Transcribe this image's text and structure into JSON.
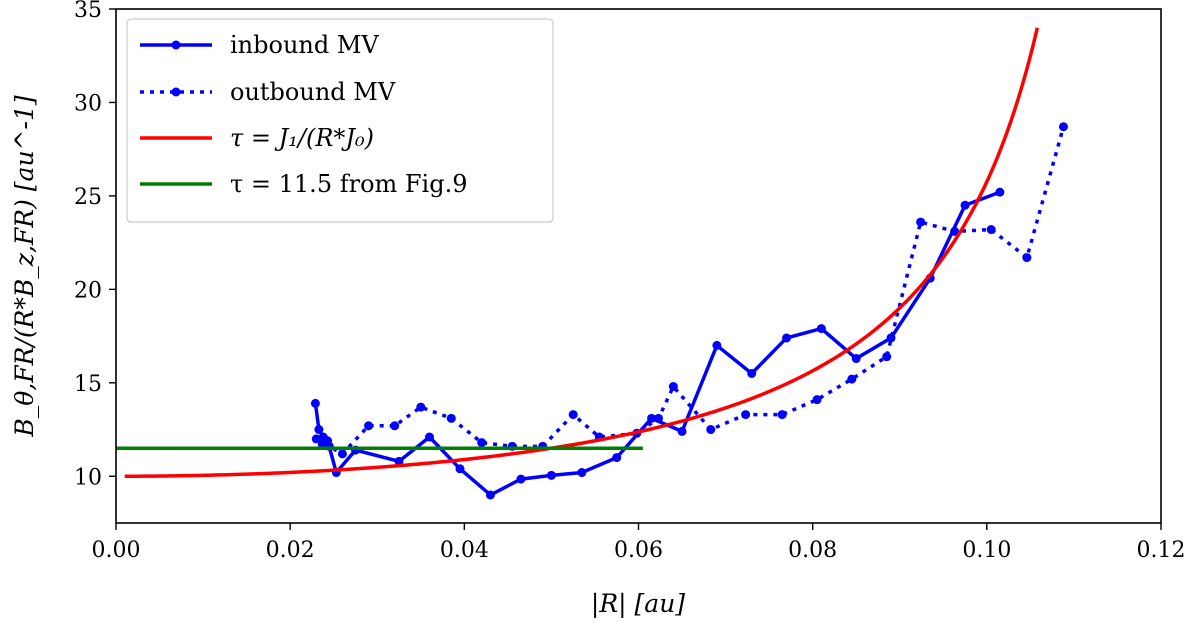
{
  "chart_data": {
    "type": "line",
    "title": "",
    "xlabel": "|R| [au]",
    "ylabel": "B_θ,FR/(R*B_z,FR) [au^-1]",
    "xlim": [
      0.0,
      0.12
    ],
    "ylim": [
      7.5,
      35
    ],
    "grid": false,
    "legend_position": "top-left",
    "x_ticks": [
      "0.00",
      "0.02",
      "0.04",
      "0.06",
      "0.08",
      "0.10",
      "0.12"
    ],
    "y_ticks": [
      "10",
      "15",
      "20",
      "25",
      "30",
      "35"
    ],
    "series": [
      {
        "name": "inbound MV",
        "style": "solid-markers",
        "color": "#0000ff",
        "x": [
          0.0229,
          0.0233,
          0.0238,
          0.0243,
          0.0253,
          0.0275,
          0.0325,
          0.036,
          0.0395,
          0.043,
          0.0465,
          0.05,
          0.0535,
          0.0575,
          0.0615,
          0.065,
          0.069,
          0.073,
          0.077,
          0.081,
          0.085,
          0.089,
          0.0935,
          0.0975,
          0.1015
        ],
        "y": [
          13.9,
          12.5,
          12.1,
          11.9,
          10.2,
          11.4,
          10.8,
          12.1,
          10.4,
          9.0,
          9.85,
          10.05,
          10.2,
          11.0,
          13.1,
          12.4,
          17.0,
          15.5,
          17.4,
          17.9,
          16.3,
          17.4,
          20.6,
          24.5,
          25.2
        ]
      },
      {
        "name": "outbound MV",
        "style": "dotted-markers",
        "color": "#0000ff",
        "x": [
          0.023,
          0.0237,
          0.0245,
          0.026,
          0.029,
          0.032,
          0.035,
          0.0385,
          0.042,
          0.0455,
          0.049,
          0.0525,
          0.0555,
          0.0598,
          0.0623,
          0.064,
          0.0683,
          0.0723,
          0.0765,
          0.0805,
          0.0845,
          0.0885,
          0.0924,
          0.0963,
          0.1005,
          0.1046,
          0.1088
        ],
        "y": [
          12.0,
          11.7,
          11.6,
          11.2,
          12.7,
          12.7,
          13.7,
          13.1,
          11.8,
          11.6,
          11.6,
          13.3,
          12.1,
          12.3,
          13.1,
          14.8,
          12.5,
          13.3,
          13.3,
          14.1,
          15.2,
          16.4,
          23.6,
          23.1,
          23.2,
          21.7,
          28.7
        ]
      },
      {
        "name": "τ = J₁/(R*J₀)",
        "style": "solid",
        "color": "#ff0000",
        "curve": "bessel_ratio",
        "x_range": [
          0.001,
          0.1058
        ]
      },
      {
        "name": "τ = 11.5 from Fig.9",
        "style": "solid",
        "color": "#008000",
        "x": [
          0.0,
          0.0605
        ],
        "y": [
          11.5,
          11.5
        ]
      }
    ]
  }
}
